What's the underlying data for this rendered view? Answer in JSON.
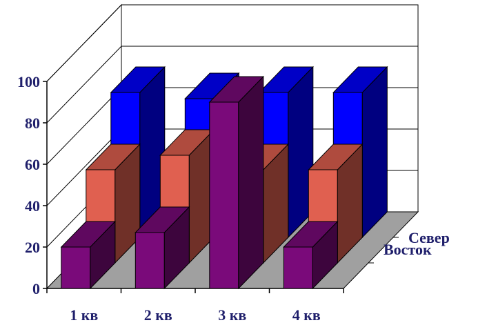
{
  "chart_data": {
    "type": "bar",
    "subtype": "3d-column",
    "title": "",
    "xlabel": "",
    "ylabel": "",
    "categories": [
      "1 кв",
      "2 кв",
      "3 кв",
      "4 кв"
    ],
    "series": [
      {
        "name": "",
        "values": [
          20,
          27,
          90,
          20
        ],
        "color": "#7a0a7a"
      },
      {
        "name": "Восток",
        "values": [
          45,
          52,
          45,
          45
        ],
        "color": "#e06050"
      },
      {
        "name": "Север",
        "values": [
          70,
          67,
          70,
          70
        ],
        "color": "#0000ff"
      }
    ],
    "ylim": [
      0,
      100
    ],
    "yticks": [
      "0",
      "20",
      "40",
      "60",
      "80",
      "100"
    ],
    "grid": true,
    "colors": {
      "floor": "#a0a0a0",
      "text": "#1f1f6b",
      "grid": "#000000"
    }
  }
}
